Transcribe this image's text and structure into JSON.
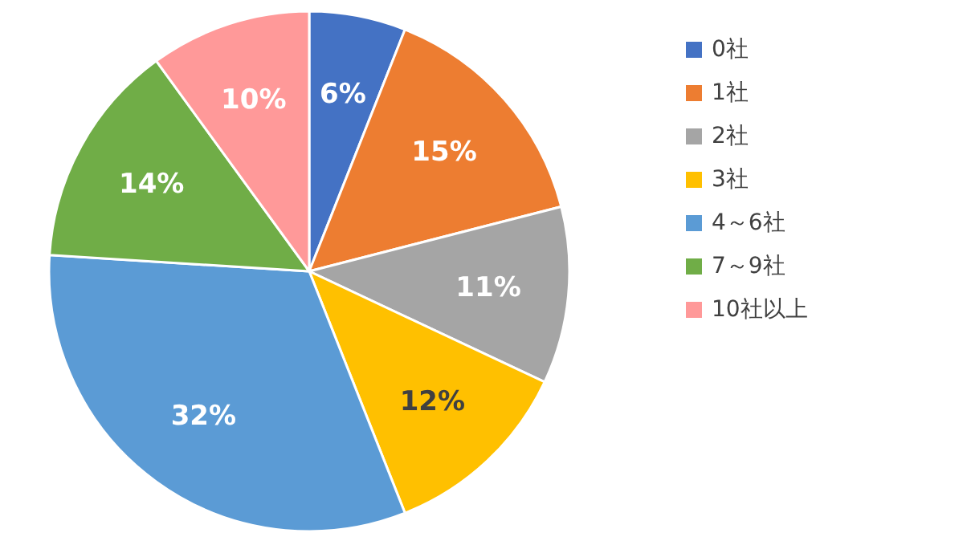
{
  "chart_data": {
    "type": "pie",
    "categories": [
      "0社",
      "1社",
      "2社",
      "3社",
      "4～6社",
      "7～9社",
      "10社以上"
    ],
    "values": [
      6,
      15,
      11,
      12,
      32,
      14,
      10
    ],
    "colors": [
      "#4472c4",
      "#ed7d31",
      "#a5a5a5",
      "#ffc000",
      "#5b9bd5",
      "#70ad47",
      "#ff9999"
    ],
    "value_labels": [
      "6%",
      "15%",
      "11%",
      "12%",
      "32%",
      "14%",
      "10%"
    ],
    "legend": "right"
  }
}
